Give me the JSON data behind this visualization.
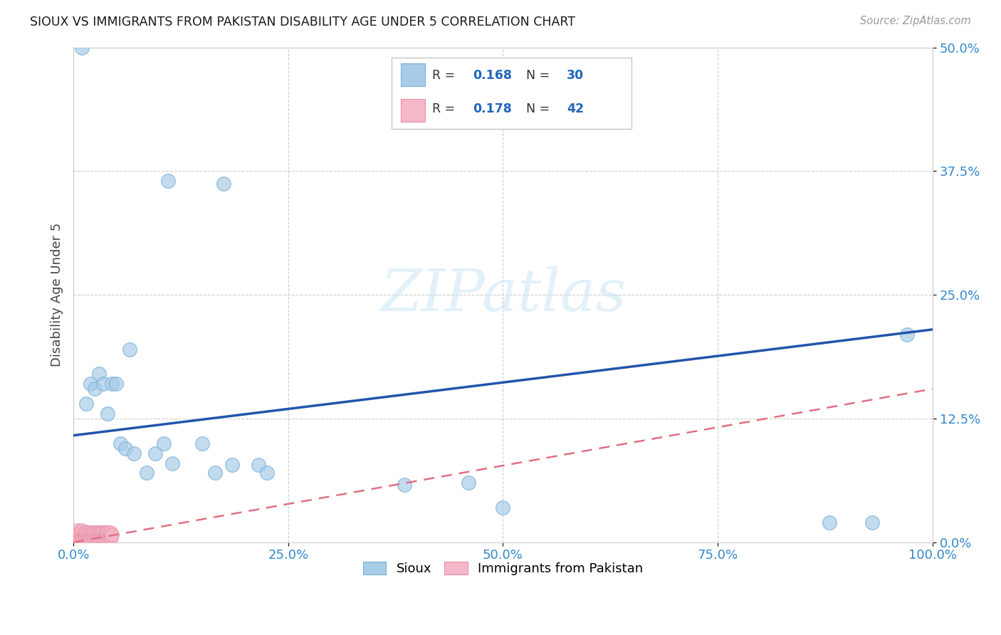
{
  "title": "SIOUX VS IMMIGRANTS FROM PAKISTAN DISABILITY AGE UNDER 5 CORRELATION CHART",
  "source": "Source: ZipAtlas.com",
  "ylabel": "Disability Age Under 5",
  "xlim": [
    0,
    1.0
  ],
  "ylim": [
    0,
    0.5
  ],
  "xticks": [
    0.0,
    0.25,
    0.5,
    0.75,
    1.0
  ],
  "yticks": [
    0.0,
    0.125,
    0.25,
    0.375,
    0.5
  ],
  "sioux_color": "#a8cce8",
  "sioux_edge_color": "#7ab0d4",
  "pakistan_color": "#f5b8c8",
  "pakistan_edge_color": "#e890a8",
  "sioux_R": "0.168",
  "sioux_N": "30",
  "pakistan_R": "0.178",
  "pakistan_N": "42",
  "watermark_text": "ZIPatlas",
  "sioux_x": [
    0.01,
    0.015,
    0.02,
    0.025,
    0.03,
    0.035,
    0.04,
    0.045,
    0.05,
    0.055,
    0.06,
    0.065,
    0.11,
    0.175,
    0.185,
    0.15,
    0.07,
    0.085,
    0.095,
    0.105,
    0.115,
    0.165,
    0.215,
    0.225,
    0.385,
    0.46,
    0.5,
    0.88,
    0.93,
    0.97
  ],
  "sioux_y": [
    0.5,
    0.14,
    0.16,
    0.155,
    0.17,
    0.16,
    0.13,
    0.16,
    0.16,
    0.1,
    0.095,
    0.195,
    0.365,
    0.362,
    0.078,
    0.1,
    0.09,
    0.07,
    0.09,
    0.1,
    0.08,
    0.07,
    0.078,
    0.07,
    0.058,
    0.06,
    0.035,
    0.02,
    0.02,
    0.21
  ],
  "pakistan_x": [
    0.003,
    0.005,
    0.006,
    0.007,
    0.008,
    0.009,
    0.01,
    0.011,
    0.012,
    0.013,
    0.014,
    0.015,
    0.016,
    0.017,
    0.018,
    0.019,
    0.02,
    0.021,
    0.022,
    0.023,
    0.024,
    0.025,
    0.026,
    0.027,
    0.028,
    0.029,
    0.03,
    0.031,
    0.032,
    0.033,
    0.034,
    0.035,
    0.036,
    0.037,
    0.038,
    0.039,
    0.04,
    0.041,
    0.042,
    0.043,
    0.044,
    0.045
  ],
  "pakistan_y": [
    0.008,
    0.012,
    0.005,
    0.01,
    0.005,
    0.008,
    0.012,
    0.005,
    0.008,
    0.01,
    0.005,
    0.008,
    0.01,
    0.005,
    0.008,
    0.01,
    0.005,
    0.008,
    0.01,
    0.005,
    0.008,
    0.01,
    0.005,
    0.008,
    0.01,
    0.005,
    0.008,
    0.01,
    0.005,
    0.008,
    0.01,
    0.005,
    0.008,
    0.01,
    0.005,
    0.008,
    0.01,
    0.005,
    0.008,
    0.01,
    0.005,
    0.008
  ],
  "sioux_trend_x0": 0.0,
  "sioux_trend_x1": 1.0,
  "sioux_trend_y0": 0.108,
  "sioux_trend_y1": 0.215,
  "pak_trend_x0": 0.0,
  "pak_trend_x1": 1.0,
  "pak_trend_y0": 0.0,
  "pak_trend_y1": 0.155,
  "background_color": "#ffffff",
  "grid_color": "#cccccc",
  "title_color": "#1a1a1a",
  "tick_color": "#3388cc",
  "ylabel_color": "#444444",
  "trend_blue": "#2255aa",
  "trend_pink": "#e07080"
}
